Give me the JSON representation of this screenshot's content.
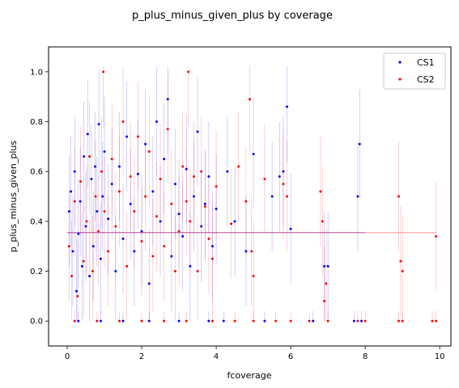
{
  "chart_data": {
    "type": "scatter",
    "title": "p_plus_minus_given_plus by coverage",
    "xlabel": "fcoverage",
    "ylabel": "p_plus_minus_given_plus",
    "xlim": [
      -0.5,
      10.3
    ],
    "ylim": [
      -0.1,
      1.1
    ],
    "xticks": [
      0,
      2,
      4,
      6,
      8,
      10
    ],
    "yticks": [
      0.0,
      0.2,
      0.4,
      0.6,
      0.8,
      1.0
    ],
    "grid": false,
    "legend_position": "top-right",
    "series": [
      {
        "name": "CS1",
        "color": "#0000ff",
        "mean": 0.355,
        "mean_x_range": [
          0.0,
          8.0
        ],
        "points": [
          [
            0.05,
            0.44
          ],
          [
            0.1,
            0.52
          ],
          [
            0.15,
            0.28
          ],
          [
            0.2,
            0.6
          ],
          [
            0.25,
            0.12
          ],
          [
            0.3,
            0.35
          ],
          [
            0.35,
            0.48
          ],
          [
            0.4,
            0.22
          ],
          [
            0.45,
            0.66
          ],
          [
            0.5,
            0.38
          ],
          [
            0.55,
            0.75
          ],
          [
            0.6,
            0.18
          ],
          [
            0.65,
            0.57
          ],
          [
            0.7,
            0.3
          ],
          [
            0.75,
            0.62
          ],
          [
            0.8,
            0.44
          ],
          [
            0.85,
            0.79
          ],
          [
            0.9,
            0.25
          ],
          [
            0.95,
            0.5
          ],
          [
            1.0,
            0.68
          ],
          [
            1.1,
            0.41
          ],
          [
            1.2,
            0.55
          ],
          [
            1.3,
            0.2
          ],
          [
            1.4,
            0.62
          ],
          [
            1.5,
            0.33
          ],
          [
            1.6,
            0.74
          ],
          [
            1.7,
            0.47
          ],
          [
            1.8,
            0.28
          ],
          [
            1.9,
            0.59
          ],
          [
            2.0,
            0.36
          ],
          [
            2.1,
            0.71
          ],
          [
            2.2,
            0.15
          ],
          [
            2.3,
            0.52
          ],
          [
            2.4,
            0.8
          ],
          [
            2.5,
            0.4
          ],
          [
            2.6,
            0.65
          ],
          [
            2.7,
            0.89
          ],
          [
            2.8,
            0.26
          ],
          [
            2.9,
            0.55
          ],
          [
            3.0,
            0.43
          ],
          [
            3.1,
            0.34
          ],
          [
            3.2,
            0.61
          ],
          [
            3.3,
            0.22
          ],
          [
            3.4,
            0.5
          ],
          [
            3.5,
            0.76
          ],
          [
            3.6,
            0.38
          ],
          [
            3.7,
            0.47
          ],
          [
            3.8,
            0.58
          ],
          [
            3.9,
            0.3
          ],
          [
            4.0,
            0.45
          ],
          [
            4.3,
            0.6
          ],
          [
            4.5,
            0.4
          ],
          [
            4.8,
            0.28
          ],
          [
            5.0,
            0.67
          ],
          [
            5.5,
            0.5
          ],
          [
            5.7,
            0.58
          ],
          [
            5.8,
            0.6
          ],
          [
            5.9,
            0.86
          ],
          [
            6.0,
            0.37
          ],
          [
            6.9,
            0.22
          ],
          [
            7.0,
            0.22
          ],
          [
            7.8,
            0.5
          ],
          [
            7.85,
            0.71
          ],
          [
            0.3,
            0.0
          ],
          [
            0.9,
            0.0
          ],
          [
            1.5,
            0.0
          ],
          [
            2.2,
            0.0
          ],
          [
            3.0,
            0.0
          ],
          [
            3.8,
            0.0
          ],
          [
            4.2,
            0.0
          ],
          [
            5.3,
            0.0
          ],
          [
            6.6,
            0.0
          ],
          [
            7.7,
            0.0
          ],
          [
            7.9,
            0.0
          ]
        ]
      },
      {
        "name": "CS2",
        "color": "#ff0000",
        "mean": 0.355,
        "mean_x_range": [
          0.0,
          9.9
        ],
        "points": [
          [
            0.05,
            0.3
          ],
          [
            0.12,
            0.18
          ],
          [
            0.2,
            0.48
          ],
          [
            0.28,
            0.1
          ],
          [
            0.36,
            0.56
          ],
          [
            0.44,
            0.24
          ],
          [
            0.52,
            0.4
          ],
          [
            0.6,
            0.66
          ],
          [
            0.68,
            0.2
          ],
          [
            0.76,
            0.5
          ],
          [
            0.84,
            0.36
          ],
          [
            0.92,
            0.6
          ],
          [
            0.97,
            1.0
          ],
          [
            1.0,
            0.44
          ],
          [
            1.1,
            0.28
          ],
          [
            1.2,
            0.65
          ],
          [
            1.3,
            0.38
          ],
          [
            1.4,
            0.52
          ],
          [
            1.5,
            0.8
          ],
          [
            1.6,
            0.22
          ],
          [
            1.7,
            0.58
          ],
          [
            1.8,
            0.44
          ],
          [
            1.9,
            0.74
          ],
          [
            2.0,
            0.32
          ],
          [
            2.1,
            0.5
          ],
          [
            2.2,
            0.68
          ],
          [
            2.3,
            0.26
          ],
          [
            2.4,
            0.42
          ],
          [
            2.5,
            0.57
          ],
          [
            2.6,
            0.3
          ],
          [
            2.7,
            0.77
          ],
          [
            2.8,
            0.47
          ],
          [
            2.9,
            0.2
          ],
          [
            3.0,
            0.36
          ],
          [
            3.1,
            0.62
          ],
          [
            3.2,
            0.48
          ],
          [
            3.25,
            1.0
          ],
          [
            3.3,
            0.4
          ],
          [
            3.4,
            0.58
          ],
          [
            3.5,
            0.2
          ],
          [
            3.6,
            0.6
          ],
          [
            3.7,
            0.46
          ],
          [
            3.8,
            0.33
          ],
          [
            3.9,
            0.25
          ],
          [
            4.0,
            0.54
          ],
          [
            4.4,
            0.39
          ],
          [
            4.6,
            0.62
          ],
          [
            4.8,
            0.48
          ],
          [
            4.9,
            0.89
          ],
          [
            4.95,
            0.28
          ],
          [
            5.0,
            0.18
          ],
          [
            5.3,
            0.57
          ],
          [
            5.8,
            0.55
          ],
          [
            5.9,
            0.5
          ],
          [
            6.8,
            0.52
          ],
          [
            6.85,
            0.4
          ],
          [
            6.9,
            0.08
          ],
          [
            6.95,
            0.15
          ],
          [
            8.9,
            0.5
          ],
          [
            8.95,
            0.24
          ],
          [
            9.0,
            0.2
          ],
          [
            9.9,
            0.34
          ],
          [
            0.2,
            0.0
          ],
          [
            0.8,
            0.0
          ],
          [
            1.4,
            0.0
          ],
          [
            2.0,
            0.0
          ],
          [
            2.6,
            0.0
          ],
          [
            3.2,
            0.0
          ],
          [
            3.9,
            0.0
          ],
          [
            4.5,
            0.0
          ],
          [
            5.0,
            0.0
          ],
          [
            5.6,
            0.0
          ],
          [
            6.0,
            0.0
          ],
          [
            6.5,
            0.0
          ],
          [
            7.0,
            0.0
          ],
          [
            7.8,
            0.0
          ],
          [
            8.0,
            0.0
          ],
          [
            8.9,
            0.0
          ],
          [
            9.0,
            0.0
          ],
          [
            9.8,
            0.0
          ],
          [
            9.9,
            0.0
          ]
        ]
      }
    ]
  }
}
